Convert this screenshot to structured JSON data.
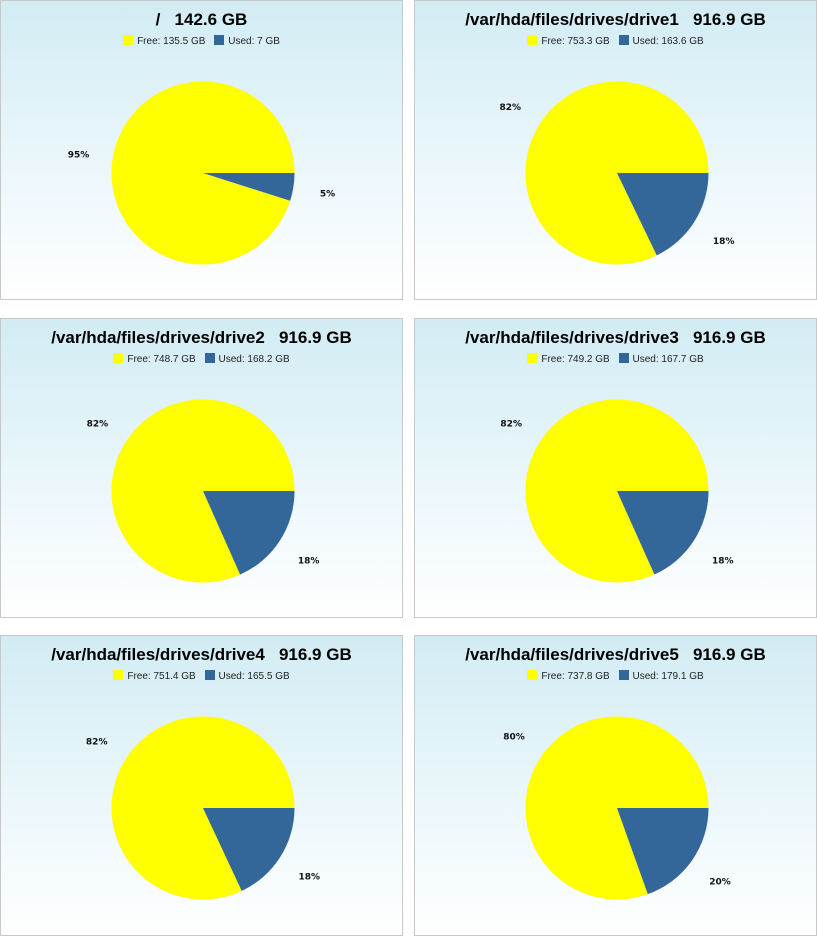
{
  "colors": {
    "free": "#ffff00",
    "used": "#336699"
  },
  "legend_labels": {
    "free": "Free",
    "used": "Used"
  },
  "chart_data": [
    {
      "type": "pie",
      "title": "/   142.6 GB",
      "categories": [
        "Free",
        "Used"
      ],
      "values": [
        135.5,
        7
      ],
      "legend": [
        "Free: 135.5 GB",
        "Used: 7 GB"
      ],
      "pct_labels": [
        "95%",
        "5%"
      ],
      "legend_placement": "top"
    },
    {
      "type": "pie",
      "title": "/var/hda/files/drives/drive1   916.9 GB",
      "categories": [
        "Free",
        "Used"
      ],
      "values": [
        753.3,
        163.6
      ],
      "legend": [
        "Free: 753.3 GB",
        "Used: 163.6 GB"
      ],
      "pct_labels": [
        "82%",
        "18%"
      ],
      "legend_placement": "top"
    },
    {
      "type": "pie",
      "title": "/var/hda/files/drives/drive2   916.9 GB",
      "categories": [
        "Free",
        "Used"
      ],
      "values": [
        748.7,
        168.2
      ],
      "legend": [
        "Free: 748.7 GB",
        "Used: 168.2 GB"
      ],
      "pct_labels": [
        "82%",
        "18%"
      ],
      "legend_placement": "top"
    },
    {
      "type": "pie",
      "title": "/var/hda/files/drives/drive3   916.9 GB",
      "categories": [
        "Free",
        "Used"
      ],
      "values": [
        749.2,
        167.7
      ],
      "legend": [
        "Free: 749.2 GB",
        "Used: 167.7 GB"
      ],
      "pct_labels": [
        "82%",
        "18%"
      ],
      "legend_placement": "top"
    },
    {
      "type": "pie",
      "title": "/var/hda/files/drives/drive4   916.9 GB",
      "categories": [
        "Free",
        "Used"
      ],
      "values": [
        751.4,
        165.5
      ],
      "legend": [
        "Free: 751.4 GB",
        "Used: 165.5 GB"
      ],
      "pct_labels": [
        "82%",
        "18%"
      ],
      "legend_placement": "top"
    },
    {
      "type": "pie",
      "title": "/var/hda/files/drives/drive5   916.9 GB",
      "categories": [
        "Free",
        "Used"
      ],
      "values": [
        737.8,
        179.1
      ],
      "legend": [
        "Free: 737.8 GB",
        "Used: 179.1 GB"
      ],
      "pct_labels": [
        "80%",
        "20%"
      ],
      "legend_placement": "top"
    }
  ]
}
